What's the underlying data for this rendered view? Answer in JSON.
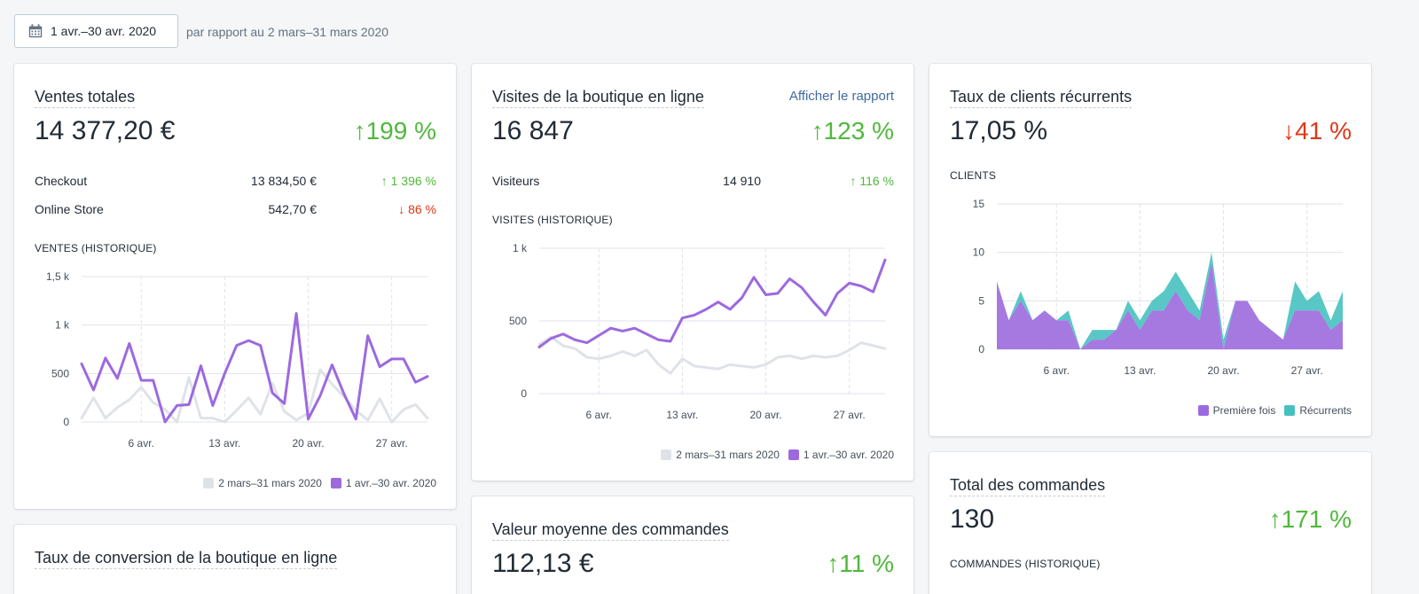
{
  "header": {
    "date_range": "1 avr.–30 avr. 2020",
    "compare_text": "par rapport au 2 mars–31 mars 2020"
  },
  "colors": {
    "current": "#9c6ade",
    "previous": "#dfe3e8",
    "returning": "#47c1bf",
    "up": "#50b83c",
    "down": "#de3618",
    "link": "#3f6ba1"
  },
  "total_sales": {
    "title": "Ventes totales",
    "value": "14 377,20 €",
    "change": "↑199 %",
    "rows": [
      {
        "name": "Checkout",
        "value": "13 834,50 €",
        "change": "↑ 1 396 %",
        "direction": "up"
      },
      {
        "name": "Online Store",
        "value": "542,70 €",
        "change": "↓ 86 %",
        "direction": "down"
      }
    ],
    "section": "VENTES (HISTORIQUE)",
    "legend": [
      "2 mars–31 mars 2020",
      "1 avr.–30 avr. 2020"
    ]
  },
  "visits": {
    "title": "Visites de la boutique en ligne",
    "link": "Afficher le rapport",
    "value": "16 847",
    "change": "↑123 %",
    "rows": [
      {
        "name": "Visiteurs",
        "value": "14 910",
        "change": "↑ 116 %",
        "direction": "up"
      }
    ],
    "section": "VISITES (HISTORIQUE)",
    "legend": [
      "2 mars–31 mars 2020",
      "1 avr.–30 avr. 2020"
    ]
  },
  "returning": {
    "title": "Taux de clients récurrents",
    "value": "17,05 %",
    "change": "↓41 %",
    "section": "CLIENTS",
    "legend": [
      "Première fois",
      "Récurrents"
    ]
  },
  "conversion": {
    "title": "Taux de conversion de la boutique en ligne"
  },
  "aov": {
    "title": "Valeur moyenne des commandes",
    "value": "112,13 €",
    "change": "↑11 %"
  },
  "orders": {
    "title": "Total des commandes",
    "value": "130",
    "change": "↑171 %",
    "section": "COMMANDES (HISTORIQUE)"
  },
  "chart_data": [
    {
      "type": "line",
      "title": "VENTES (HISTORIQUE)",
      "x": [
        "1 avr.",
        "2 avr.",
        "3 avr.",
        "4 avr.",
        "5 avr.",
        "6 avr.",
        "7 avr.",
        "8 avr.",
        "9 avr.",
        "10 avr.",
        "11 avr.",
        "12 avr.",
        "13 avr.",
        "14 avr.",
        "15 avr.",
        "16 avr.",
        "17 avr.",
        "18 avr.",
        "19 avr.",
        "20 avr.",
        "21 avr.",
        "22 avr.",
        "23 avr.",
        "24 avr.",
        "25 avr.",
        "26 avr.",
        "27 avr.",
        "28 avr.",
        "29 avr.",
        "30 avr."
      ],
      "xticks": [
        "6 avr.",
        "13 avr.",
        "20 avr.",
        "27 avr."
      ],
      "yticks": [
        "0",
        "500",
        "1 k",
        "1,5 k"
      ],
      "ylim": [
        0,
        1500
      ],
      "series": [
        {
          "name": "2 mars–31 mars 2020",
          "values": [
            40,
            250,
            40,
            150,
            230,
            360,
            200,
            130,
            0,
            460,
            40,
            40,
            0,
            120,
            250,
            80,
            400,
            110,
            20,
            90,
            540,
            390,
            260,
            120,
            20,
            240,
            0,
            130,
            180,
            40
          ]
        },
        {
          "name": "1 avr.–30 avr. 2020",
          "values": [
            600,
            330,
            660,
            450,
            810,
            430,
            430,
            0,
            170,
            180,
            580,
            170,
            500,
            790,
            840,
            790,
            300,
            190,
            1120,
            30,
            270,
            590,
            290,
            30,
            890,
            570,
            650,
            650,
            410,
            470
          ]
        }
      ]
    },
    {
      "type": "line",
      "title": "VISITES (HISTORIQUE)",
      "x": [
        "1 avr.",
        "2 avr.",
        "3 avr.",
        "4 avr.",
        "5 avr.",
        "6 avr.",
        "7 avr.",
        "8 avr.",
        "9 avr.",
        "10 avr.",
        "11 avr.",
        "12 avr.",
        "13 avr.",
        "14 avr.",
        "15 avr.",
        "16 avr.",
        "17 avr.",
        "18 avr.",
        "19 avr.",
        "20 avr.",
        "21 avr.",
        "22 avr.",
        "23 avr.",
        "24 avr.",
        "25 avr.",
        "26 avr.",
        "27 avr.",
        "28 avr.",
        "29 avr.",
        "30 avr."
      ],
      "xticks": [
        "6 avr.",
        "13 avr.",
        "20 avr.",
        "27 avr."
      ],
      "yticks": [
        "0",
        "500",
        "1 k"
      ],
      "ylim": [
        0,
        1000
      ],
      "series": [
        {
          "name": "2 mars–31 mars 2020",
          "values": [
            340,
            390,
            330,
            310,
            250,
            240,
            260,
            290,
            260,
            300,
            200,
            140,
            240,
            190,
            180,
            170,
            200,
            190,
            180,
            200,
            250,
            260,
            240,
            260,
            250,
            260,
            300,
            350,
            330,
            310
          ]
        },
        {
          "name": "1 avr.–30 avr. 2020",
          "values": [
            320,
            380,
            410,
            370,
            350,
            400,
            450,
            430,
            450,
            410,
            370,
            360,
            520,
            540,
            580,
            630,
            580,
            660,
            800,
            680,
            690,
            790,
            730,
            630,
            540,
            690,
            760,
            740,
            700,
            920
          ]
        }
      ]
    },
    {
      "type": "area",
      "title": "CLIENTS",
      "x": [
        "1 avr.",
        "2 avr.",
        "3 avr.",
        "4 avr.",
        "5 avr.",
        "6 avr.",
        "7 avr.",
        "8 avr.",
        "9 avr.",
        "10 avr.",
        "11 avr.",
        "12 avr.",
        "13 avr.",
        "14 avr.",
        "15 avr.",
        "16 avr.",
        "17 avr.",
        "18 avr.",
        "19 avr.",
        "20 avr.",
        "21 avr.",
        "22 avr.",
        "23 avr.",
        "24 avr.",
        "25 avr.",
        "26 avr.",
        "27 avr.",
        "28 avr.",
        "29 avr.",
        "30 avr."
      ],
      "xticks": [
        "6 avr.",
        "13 avr.",
        "20 avr.",
        "27 avr."
      ],
      "yticks": [
        "0",
        "5",
        "10",
        "15"
      ],
      "ylim": [
        0,
        15
      ],
      "stacked": true,
      "series": [
        {
          "name": "Première fois",
          "values": [
            7,
            3,
            5,
            3,
            4,
            3,
            3,
            0,
            1,
            1,
            2,
            4,
            2,
            4,
            4,
            6,
            4,
            3,
            9,
            0,
            5,
            5,
            3,
            2,
            1,
            4,
            4,
            4,
            2,
            3
          ]
        },
        {
          "name": "Récurrents",
          "values": [
            0,
            0,
            1,
            0,
            0,
            0,
            1,
            0,
            1,
            1,
            0,
            1,
            1,
            1,
            2,
            2,
            2,
            1,
            1,
            1,
            0,
            0,
            0,
            0,
            0,
            3,
            1,
            2,
            1,
            3
          ]
        }
      ]
    }
  ]
}
